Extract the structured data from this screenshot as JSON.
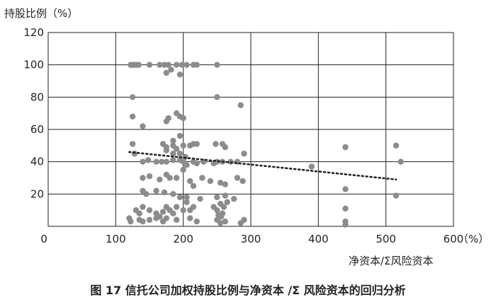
{
  "caption": "图 17 信托公司加权持股比例与净资本 /Σ 风险资本的回归分析",
  "chart_data": {
    "type": "scatter",
    "ylabel": "持股比例（%）",
    "xlabel": "净资本/Σ风险资本",
    "x_unit": "（%）",
    "xlim": [
      0,
      600
    ],
    "ylim": [
      0,
      120
    ],
    "xticks": [
      0,
      100,
      200,
      300,
      400,
      500,
      600
    ],
    "yticks": [
      0,
      20,
      40,
      60,
      80,
      100,
      120
    ],
    "grid": true,
    "point_color": "#8c8c8c",
    "trend_color": "#222222",
    "trendline": {
      "x": [
        120,
        515
      ],
      "y": [
        46,
        29
      ]
    },
    "points": [
      {
        "x": 122,
        "y": 100
      },
      {
        "x": 124,
        "y": 100
      },
      {
        "x": 126,
        "y": 100
      },
      {
        "x": 128,
        "y": 100
      },
      {
        "x": 131,
        "y": 100
      },
      {
        "x": 134,
        "y": 100
      },
      {
        "x": 150,
        "y": 100
      },
      {
        "x": 165,
        "y": 100
      },
      {
        "x": 172,
        "y": 100
      },
      {
        "x": 178,
        "y": 100
      },
      {
        "x": 190,
        "y": 100
      },
      {
        "x": 198,
        "y": 100
      },
      {
        "x": 205,
        "y": 100
      },
      {
        "x": 215,
        "y": 100
      },
      {
        "x": 220,
        "y": 100
      },
      {
        "x": 250,
        "y": 100
      },
      {
        "x": 175,
        "y": 95
      },
      {
        "x": 182,
        "y": 97
      },
      {
        "x": 195,
        "y": 94
      },
      {
        "x": 125,
        "y": 80
      },
      {
        "x": 250,
        "y": 80
      },
      {
        "x": 285,
        "y": 75
      },
      {
        "x": 125,
        "y": 68
      },
      {
        "x": 178,
        "y": 67
      },
      {
        "x": 175,
        "y": 65
      },
      {
        "x": 190,
        "y": 70
      },
      {
        "x": 195,
        "y": 68
      },
      {
        "x": 200,
        "y": 67
      },
      {
        "x": 140,
        "y": 62
      },
      {
        "x": 195,
        "y": 56
      },
      {
        "x": 185,
        "y": 53
      },
      {
        "x": 125,
        "y": 51
      },
      {
        "x": 170,
        "y": 51
      },
      {
        "x": 175,
        "y": 49
      },
      {
        "x": 185,
        "y": 50
      },
      {
        "x": 190,
        "y": 48
      },
      {
        "x": 200,
        "y": 50
      },
      {
        "x": 210,
        "y": 50
      },
      {
        "x": 215,
        "y": 51
      },
      {
        "x": 220,
        "y": 51
      },
      {
        "x": 248,
        "y": 51
      },
      {
        "x": 258,
        "y": 51
      },
      {
        "x": 262,
        "y": 49
      },
      {
        "x": 128,
        "y": 45
      },
      {
        "x": 175,
        "y": 47
      },
      {
        "x": 185,
        "y": 45
      },
      {
        "x": 195,
        "y": 45
      },
      {
        "x": 203,
        "y": 43
      },
      {
        "x": 290,
        "y": 45
      },
      {
        "x": 140,
        "y": 40
      },
      {
        "x": 148,
        "y": 41
      },
      {
        "x": 160,
        "y": 40
      },
      {
        "x": 168,
        "y": 40
      },
      {
        "x": 175,
        "y": 40
      },
      {
        "x": 185,
        "y": 41
      },
      {
        "x": 195,
        "y": 41
      },
      {
        "x": 200,
        "y": 40
      },
      {
        "x": 205,
        "y": 38
      },
      {
        "x": 215,
        "y": 40
      },
      {
        "x": 220,
        "y": 39
      },
      {
        "x": 230,
        "y": 40
      },
      {
        "x": 245,
        "y": 39
      },
      {
        "x": 250,
        "y": 40
      },
      {
        "x": 258,
        "y": 40
      },
      {
        "x": 270,
        "y": 40
      },
      {
        "x": 280,
        "y": 40
      },
      {
        "x": 390,
        "y": 37
      },
      {
        "x": 440,
        "y": 49
      },
      {
        "x": 515,
        "y": 50
      },
      {
        "x": 522,
        "y": 40
      },
      {
        "x": 140,
        "y": 30
      },
      {
        "x": 150,
        "y": 31
      },
      {
        "x": 165,
        "y": 29
      },
      {
        "x": 175,
        "y": 32
      },
      {
        "x": 180,
        "y": 30
      },
      {
        "x": 190,
        "y": 30
      },
      {
        "x": 200,
        "y": 35
      },
      {
        "x": 210,
        "y": 28
      },
      {
        "x": 215,
        "y": 25
      },
      {
        "x": 228,
        "y": 30
      },
      {
        "x": 240,
        "y": 28
      },
      {
        "x": 255,
        "y": 27
      },
      {
        "x": 262,
        "y": 26
      },
      {
        "x": 280,
        "y": 30
      },
      {
        "x": 288,
        "y": 28
      },
      {
        "x": 140,
        "y": 22
      },
      {
        "x": 145,
        "y": 20
      },
      {
        "x": 160,
        "y": 22
      },
      {
        "x": 172,
        "y": 21
      },
      {
        "x": 185,
        "y": 20
      },
      {
        "x": 195,
        "y": 18
      },
      {
        "x": 205,
        "y": 18
      },
      {
        "x": 225,
        "y": 17
      },
      {
        "x": 250,
        "y": 18
      },
      {
        "x": 262,
        "y": 19
      },
      {
        "x": 275,
        "y": 17
      },
      {
        "x": 440,
        "y": 23
      },
      {
        "x": 515,
        "y": 19
      },
      {
        "x": 130,
        "y": 10
      },
      {
        "x": 135,
        "y": 8
      },
      {
        "x": 140,
        "y": 12
      },
      {
        "x": 150,
        "y": 10
      },
      {
        "x": 160,
        "y": 8
      },
      {
        "x": 170,
        "y": 9
      },
      {
        "x": 175,
        "y": 12
      },
      {
        "x": 180,
        "y": 10
      },
      {
        "x": 185,
        "y": 8
      },
      {
        "x": 190,
        "y": 12
      },
      {
        "x": 200,
        "y": 10
      },
      {
        "x": 205,
        "y": 15
      },
      {
        "x": 210,
        "y": 10
      },
      {
        "x": 215,
        "y": 12
      },
      {
        "x": 245,
        "y": 12
      },
      {
        "x": 250,
        "y": 10
      },
      {
        "x": 255,
        "y": 14
      },
      {
        "x": 260,
        "y": 12
      },
      {
        "x": 265,
        "y": 15
      },
      {
        "x": 440,
        "y": 11
      },
      {
        "x": 120,
        "y": 5
      },
      {
        "x": 122,
        "y": 3
      },
      {
        "x": 135,
        "y": 4
      },
      {
        "x": 140,
        "y": 3
      },
      {
        "x": 150,
        "y": 4
      },
      {
        "x": 160,
        "y": 5
      },
      {
        "x": 165,
        "y": 6
      },
      {
        "x": 170,
        "y": 3
      },
      {
        "x": 175,
        "y": 5
      },
      {
        "x": 190,
        "y": 4
      },
      {
        "x": 210,
        "y": 5
      },
      {
        "x": 220,
        "y": 3
      },
      {
        "x": 250,
        "y": 4
      },
      {
        "x": 255,
        "y": 2
      },
      {
        "x": 262,
        "y": 3
      },
      {
        "x": 285,
        "y": 2
      },
      {
        "x": 290,
        "y": 4
      },
      {
        "x": 440,
        "y": 3
      },
      {
        "x": 440,
        "y": 1
      },
      {
        "x": 256,
        "y": 6
      },
      {
        "x": 258,
        "y": 8
      },
      {
        "x": 252,
        "y": 7
      }
    ]
  }
}
